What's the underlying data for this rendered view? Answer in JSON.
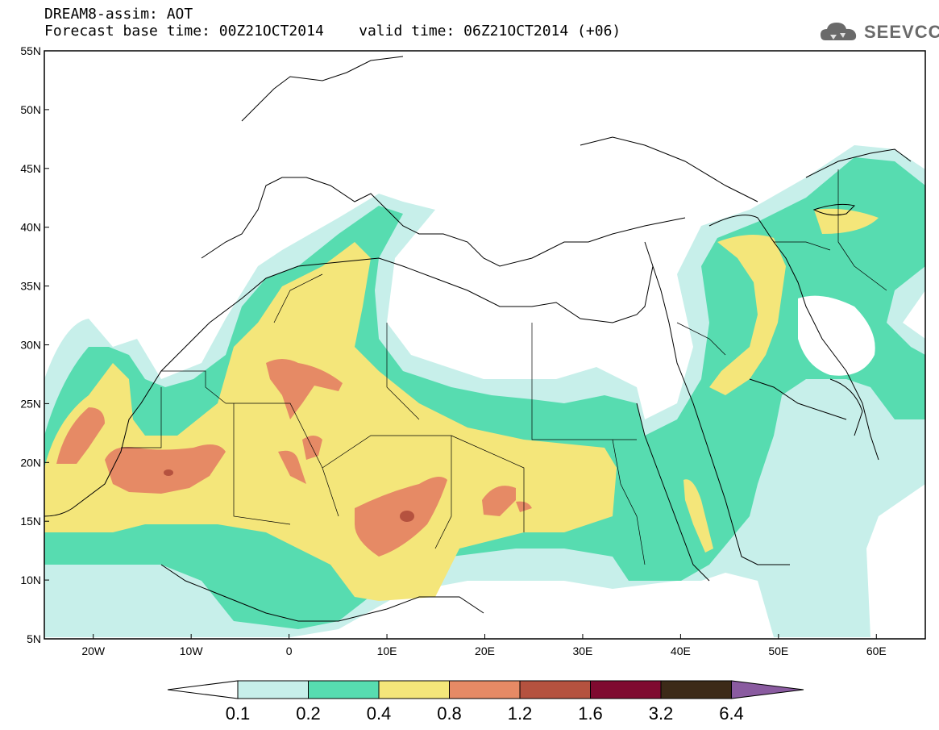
{
  "header": {
    "title_line1": "DREAM8-assim: AOT",
    "title_line2": "Forecast base time: 00Z21OCT2014    valid time: 06Z21OCT2014 (+06)"
  },
  "logo": {
    "text": "SEEVCCC",
    "icon": "cloud-icon"
  },
  "map": {
    "lon_range": [
      -25,
      65
    ],
    "lat_range": [
      5,
      55
    ],
    "lat_ticks": [
      "55N",
      "50N",
      "45N",
      "40N",
      "35N",
      "30N",
      "25N",
      "20N",
      "15N",
      "10N",
      "5N"
    ],
    "lon_ticks": [
      "20W",
      "10W",
      "0",
      "10E",
      "20E",
      "30E",
      "40E",
      "50E",
      "60E"
    ]
  },
  "colorbar": {
    "labels": [
      "0.1",
      "0.2",
      "0.4",
      "0.8",
      "1.2",
      "1.6",
      "3.2",
      "6.4"
    ],
    "colors": [
      "#c7efea",
      "#57dcb0",
      "#f4e67a",
      "#e68a65",
      "#b5523f",
      "#7f0a30",
      "#3c2a18"
    ],
    "under_color": "#ffffff",
    "over_color": "#8a5ba0"
  }
}
